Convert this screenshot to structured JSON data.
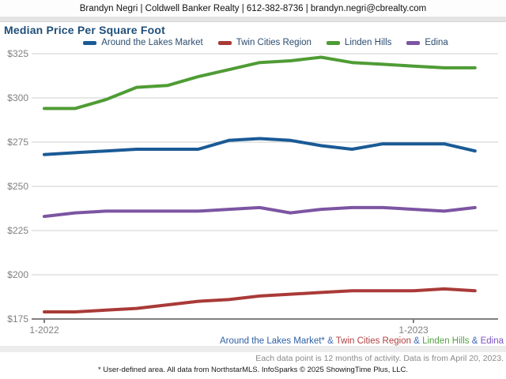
{
  "header": {
    "contact": "Brandyn Negri | Coldwell Banker Realty | 612-382-8736 | brandyn.negri@cbrealty.com"
  },
  "title": "Median Price Per Square Foot",
  "colors": {
    "title": "#1F4E79",
    "legend_text": "#2B4C6F",
    "gridline": "#cccccc",
    "axis": "#808080",
    "axis_label": "#808080",
    "bottom_band": "#ececec"
  },
  "chart_data": {
    "type": "line",
    "x": [
      "1-2022",
      "2-2022",
      "3-2022",
      "4-2022",
      "5-2022",
      "6-2022",
      "7-2022",
      "8-2022",
      "9-2022",
      "10-2022",
      "11-2022",
      "12-2022",
      "1-2023",
      "2-2023",
      "3-2023"
    ],
    "x_axis_ticks": [
      "1-2022",
      "1-2023"
    ],
    "x_tick_indexes": [
      0,
      12
    ],
    "ylim": [
      175,
      325
    ],
    "y_ticks": [
      325,
      300,
      275,
      250,
      225,
      200,
      175
    ],
    "y_tick_prefix": "$",
    "grid": true,
    "legend_position": "top",
    "series": [
      {
        "name": "Around the Lakes Market",
        "color": "#1A5A96",
        "values": [
          268,
          269,
          270,
          271,
          271,
          271,
          276,
          277,
          276,
          273,
          271,
          274,
          274,
          274,
          270
        ]
      },
      {
        "name": "Twin Cities Region",
        "color": "#A93A38",
        "values": [
          179,
          179,
          180,
          181,
          183,
          185,
          186,
          188,
          189,
          190,
          191,
          191,
          191,
          192,
          191
        ]
      },
      {
        "name": "Linden Hills",
        "color": "#4F9C35",
        "values": [
          294,
          294,
          299,
          306,
          307,
          312,
          316,
          320,
          321,
          323,
          320,
          319,
          318,
          317,
          317
        ]
      },
      {
        "name": "Edina",
        "color": "#7C55A2",
        "values": [
          233,
          235,
          236,
          236,
          236,
          236,
          237,
          238,
          235,
          237,
          238,
          238,
          237,
          236,
          238
        ]
      }
    ]
  },
  "footer": {
    "series_line": [
      {
        "text": "Around the Lakes Market*",
        "color": "#2E5FA3"
      },
      {
        "text": " & ",
        "color": "#4668B4"
      },
      {
        "text": "Twin Cities Region",
        "color": "#B04040"
      },
      {
        "text": " & ",
        "color": "#4668B4"
      },
      {
        "text": "Linden Hills",
        "color": "#55A044"
      },
      {
        "text": " & ",
        "color": "#4668B4"
      },
      {
        "text": "Edina",
        "color": "#7B52C4"
      }
    ],
    "activity_note": "Each data point is 12 months of activity. Data is from April 20, 2023.",
    "disclaimer": "* User-defined area. All data from NorthstarMLS. InfoSparks © 2025 ShowingTime Plus, LLC."
  }
}
